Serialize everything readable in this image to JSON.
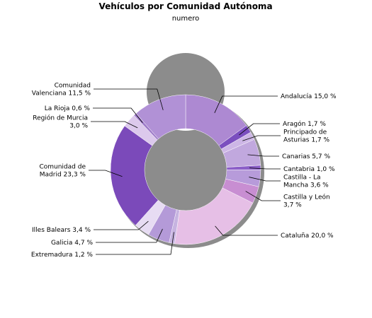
{
  "chart_data": {
    "type": "pie",
    "donut": true,
    "title": "Vehículos por Comunidad Autónoma",
    "subtitle": "numero",
    "slices": [
      {
        "name": "Andalucía",
        "value": 15.0,
        "label": [
          "Andalucía 15,0 %"
        ],
        "color": "#ad89d2"
      },
      {
        "name": "Aragón",
        "value": 1.7,
        "label": [
          "Aragón 1,7 %"
        ],
        "color": "#7b4fbf"
      },
      {
        "name": "Principado de Asturias",
        "value": 1.7,
        "label": [
          "Principado de",
          "Asturias 1,7 %"
        ],
        "color": "#cdb6e6"
      },
      {
        "name": "Canarias",
        "value": 5.7,
        "label": [
          "Canarias 5,7 %"
        ],
        "color": "#c1a8de"
      },
      {
        "name": "Cantabria",
        "value": 1.0,
        "label": [
          "Cantabria 1,0 %"
        ],
        "color": "#8c5fc8"
      },
      {
        "name": "Castilla - La Mancha",
        "value": 3.6,
        "label": [
          "Castilla - La",
          "Mancha 3,6 %"
        ],
        "color": "#b79bda"
      },
      {
        "name": "Castilla y León",
        "value": 3.7,
        "label": [
          "Castilla y León",
          "3,7 %"
        ],
        "color": "#c88ed2"
      },
      {
        "name": "Cataluña",
        "value": 20.0,
        "label": [
          "Cataluña 20,0 %"
        ],
        "color": "#e6bfe6"
      },
      {
        "name": "Extremadura",
        "value": 1.2,
        "label": [
          "Extremadura 1,2 %"
        ],
        "color": "#c6b3e0"
      },
      {
        "name": "Galicia",
        "value": 4.7,
        "label": [
          "Galicia 4,7 %"
        ],
        "color": "#b49ad8"
      },
      {
        "name": "Illes Balears",
        "value": 3.4,
        "label": [
          "Illes Balears 3,4 %"
        ],
        "color": "#e7dcf3"
      },
      {
        "name": "Comunidad de Madrid",
        "value": 23.3,
        "label": [
          "Comunidad de",
          "Madrid 23,3 %"
        ],
        "color": "#7b4aba"
      },
      {
        "name": "Región de Murcia",
        "value": 3.0,
        "label": [
          "Región de Murcia",
          "3,0 %"
        ],
        "color": "#dcc9ec"
      },
      {
        "name": "La Rioja",
        "value": 0.6,
        "label": [
          "La Rioja 0,6 %"
        ],
        "color": "#9d7ac9"
      },
      {
        "name": "Comunidad Valenciana",
        "value": 11.5,
        "label": [
          "Comunidad",
          "Valenciana 11,5 %"
        ],
        "color": "#b191d6"
      }
    ]
  }
}
